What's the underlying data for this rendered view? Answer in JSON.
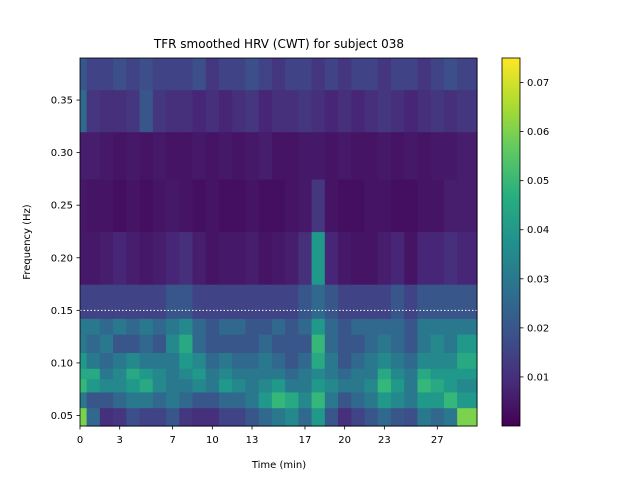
{
  "chart_data": {
    "type": "heatmap",
    "title": "TFR smoothed HRV (CWT) for subject 038",
    "xlabel": "Time (min)",
    "ylabel": "Frequency (Hz)",
    "xlim": [
      0,
      30
    ],
    "ylim": [
      0.04,
      0.39
    ],
    "xticks": [
      0,
      3,
      7,
      10,
      13,
      17,
      20,
      23,
      27
    ],
    "xtick_labels": [
      "0",
      "3",
      "7",
      "10",
      "13",
      "17",
      "20",
      "23",
      "27"
    ],
    "yticks": [
      0.05,
      0.1,
      0.15,
      0.2,
      0.25,
      0.3,
      0.35
    ],
    "ytick_labels": [
      "0.05",
      "0.10",
      "0.15",
      "0.20",
      "0.25",
      "0.30",
      "0.35"
    ],
    "colormap": "viridis",
    "colorbar": {
      "range": [
        0.0,
        0.075
      ],
      "ticks": [
        0.01,
        0.02,
        0.03,
        0.04,
        0.05,
        0.06,
        0.07
      ],
      "tick_labels": [
        "0.01",
        "0.02",
        "0.03",
        "0.04",
        "0.05",
        "0.06",
        "0.07"
      ]
    },
    "reference_line": {
      "y": 0.15,
      "style": "dotted",
      "color": "#ffffff"
    },
    "frequency_bins": [
      0.05,
      0.065,
      0.08,
      0.09,
      0.1,
      0.12,
      0.135,
      0.15,
      0.2,
      0.25,
      0.3,
      0.34,
      0.38
    ],
    "time_bins": [
      0,
      1,
      2,
      3,
      4,
      5,
      6,
      7,
      8,
      9,
      10,
      11,
      12,
      13,
      14,
      15,
      16,
      17,
      18,
      19,
      20,
      21,
      22,
      23,
      24,
      25,
      26,
      27,
      28,
      29
    ],
    "power": [
      [
        0.06,
        0.025,
        0.01,
        0.012,
        0.018,
        0.015,
        0.015,
        0.02,
        0.012,
        0.01,
        0.01,
        0.015,
        0.015,
        0.02,
        0.025,
        0.03,
        0.035,
        0.025,
        0.04,
        0.02,
        0.01,
        0.015,
        0.02,
        0.025,
        0.02,
        0.018,
        0.03,
        0.025,
        0.03,
        0.06
      ],
      [
        0.03,
        0.02,
        0.02,
        0.025,
        0.03,
        0.03,
        0.025,
        0.03,
        0.025,
        0.02,
        0.02,
        0.025,
        0.025,
        0.03,
        0.04,
        0.05,
        0.045,
        0.035,
        0.05,
        0.03,
        0.02,
        0.025,
        0.03,
        0.04,
        0.035,
        0.03,
        0.04,
        0.04,
        0.05,
        0.04
      ],
      [
        0.05,
        0.04,
        0.035,
        0.035,
        0.04,
        0.045,
        0.035,
        0.03,
        0.03,
        0.035,
        0.03,
        0.04,
        0.035,
        0.03,
        0.035,
        0.04,
        0.03,
        0.03,
        0.04,
        0.035,
        0.03,
        0.03,
        0.035,
        0.05,
        0.04,
        0.03,
        0.05,
        0.045,
        0.04,
        0.035
      ],
      [
        0.045,
        0.045,
        0.03,
        0.035,
        0.045,
        0.04,
        0.035,
        0.03,
        0.035,
        0.04,
        0.03,
        0.035,
        0.03,
        0.03,
        0.03,
        0.03,
        0.025,
        0.03,
        0.035,
        0.03,
        0.025,
        0.03,
        0.03,
        0.045,
        0.035,
        0.03,
        0.045,
        0.04,
        0.04,
        0.04
      ],
      [
        0.04,
        0.03,
        0.025,
        0.03,
        0.035,
        0.03,
        0.03,
        0.03,
        0.04,
        0.035,
        0.025,
        0.03,
        0.025,
        0.025,
        0.03,
        0.025,
        0.02,
        0.025,
        0.045,
        0.03,
        0.02,
        0.025,
        0.03,
        0.035,
        0.03,
        0.025,
        0.035,
        0.035,
        0.035,
        0.045
      ],
      [
        0.03,
        0.025,
        0.03,
        0.02,
        0.02,
        0.025,
        0.02,
        0.035,
        0.045,
        0.025,
        0.02,
        0.02,
        0.02,
        0.02,
        0.025,
        0.02,
        0.02,
        0.02,
        0.05,
        0.025,
        0.02,
        0.02,
        0.025,
        0.03,
        0.025,
        0.02,
        0.03,
        0.035,
        0.03,
        0.04
      ],
      [
        0.03,
        0.03,
        0.025,
        0.03,
        0.025,
        0.03,
        0.025,
        0.03,
        0.035,
        0.025,
        0.02,
        0.025,
        0.025,
        0.02,
        0.02,
        0.025,
        0.02,
        0.025,
        0.04,
        0.025,
        0.02,
        0.025,
        0.025,
        0.025,
        0.025,
        0.02,
        0.03,
        0.03,
        0.03,
        0.03
      ],
      [
        0.015,
        0.015,
        0.015,
        0.015,
        0.015,
        0.015,
        0.015,
        0.02,
        0.02,
        0.015,
        0.015,
        0.015,
        0.015,
        0.015,
        0.015,
        0.015,
        0.015,
        0.02,
        0.025,
        0.02,
        0.015,
        0.015,
        0.015,
        0.015,
        0.02,
        0.015,
        0.02,
        0.02,
        0.02,
        0.02
      ],
      [
        0.005,
        0.005,
        0.006,
        0.008,
        0.006,
        0.005,
        0.006,
        0.008,
        0.01,
        0.006,
        0.004,
        0.005,
        0.005,
        0.006,
        0.004,
        0.005,
        0.006,
        0.01,
        0.04,
        0.008,
        0.005,
        0.004,
        0.004,
        0.006,
        0.008,
        0.004,
        0.008,
        0.008,
        0.01,
        0.008
      ],
      [
        0.005,
        0.004,
        0.004,
        0.003,
        0.004,
        0.003,
        0.004,
        0.005,
        0.004,
        0.003,
        0.004,
        0.003,
        0.003,
        0.004,
        0.003,
        0.003,
        0.004,
        0.005,
        0.012,
        0.004,
        0.003,
        0.003,
        0.004,
        0.004,
        0.003,
        0.003,
        0.004,
        0.004,
        0.006,
        0.006
      ],
      [
        0.006,
        0.006,
        0.005,
        0.004,
        0.005,
        0.004,
        0.005,
        0.004,
        0.004,
        0.005,
        0.004,
        0.005,
        0.004,
        0.005,
        0.006,
        0.004,
        0.004,
        0.005,
        0.005,
        0.004,
        0.005,
        0.004,
        0.004,
        0.005,
        0.004,
        0.005,
        0.004,
        0.005,
        0.005,
        0.006
      ],
      [
        0.025,
        0.012,
        0.01,
        0.01,
        0.012,
        0.02,
        0.012,
        0.01,
        0.01,
        0.008,
        0.01,
        0.008,
        0.01,
        0.012,
        0.008,
        0.01,
        0.01,
        0.012,
        0.01,
        0.008,
        0.01,
        0.008,
        0.01,
        0.012,
        0.01,
        0.008,
        0.01,
        0.012,
        0.01,
        0.012
      ],
      [
        0.02,
        0.015,
        0.015,
        0.018,
        0.015,
        0.018,
        0.015,
        0.015,
        0.015,
        0.018,
        0.012,
        0.015,
        0.015,
        0.018,
        0.015,
        0.012,
        0.015,
        0.015,
        0.012,
        0.015,
        0.012,
        0.015,
        0.015,
        0.012,
        0.015,
        0.015,
        0.012,
        0.015,
        0.018,
        0.015
      ]
    ]
  }
}
